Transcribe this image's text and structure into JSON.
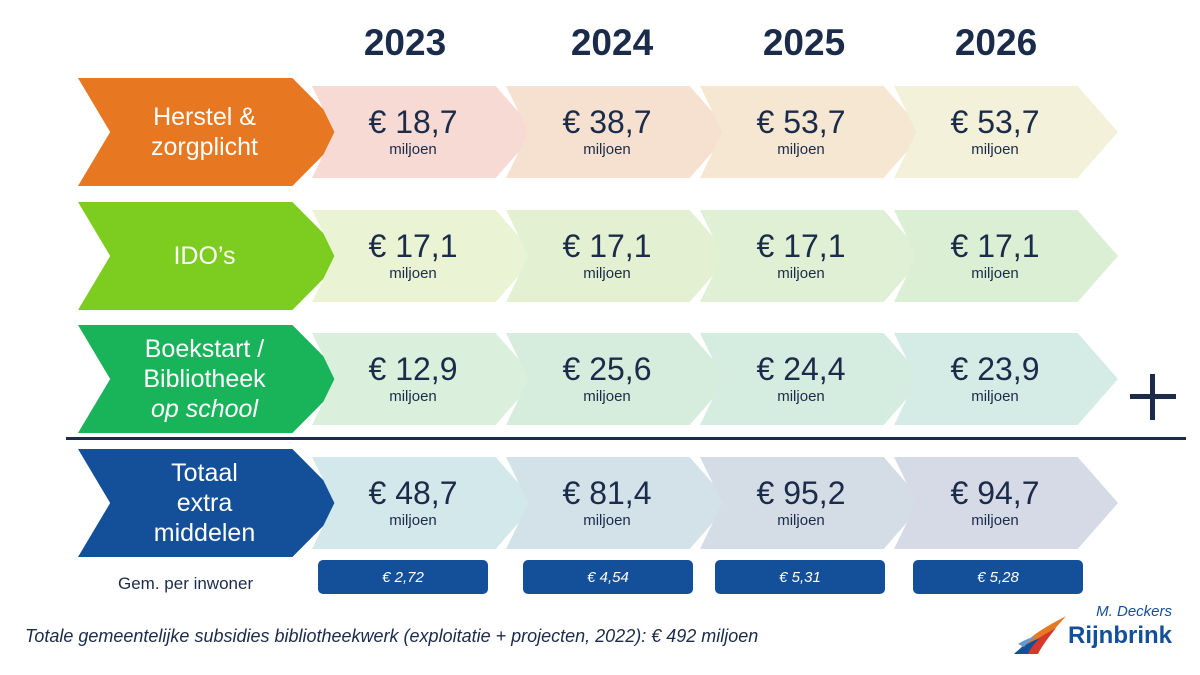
{
  "years": [
    "2023",
    "2024",
    "2025",
    "2026"
  ],
  "rows": [
    {
      "label_lines": [
        "Herstel &",
        "zorgplicht",
        ""
      ],
      "color": "#e87722",
      "fill": "#f6d9cc",
      "fills": [
        "#f7dad3",
        "#f6e0cf",
        "#f5e7d2",
        "#f3f1d9"
      ],
      "amounts": [
        "€ 18,7",
        "€ 38,7",
        "€ 53,7",
        "€ 53,7"
      ]
    },
    {
      "label_lines": [
        "IDO’s",
        "",
        ""
      ],
      "color": "#7ccd1f",
      "fills": [
        "#eaf3d3",
        "#e3f1d2",
        "#dff0d4",
        "#dbefd5"
      ],
      "amounts": [
        "€ 17,1",
        "€ 17,1",
        "€ 17,1",
        "€ 17,1"
      ]
    },
    {
      "label_lines": [
        "Boekstart /",
        "Bibliotheek",
        "op school"
      ],
      "color": "#19b45a",
      "fills": [
        "#daf0dc",
        "#d6ecdc",
        "#d5ece0",
        "#d5ece6"
      ],
      "amounts": [
        "€ 12,9",
        "€ 25,6",
        "€ 24,4",
        "€ 23,9"
      ]
    },
    {
      "label_lines": [
        "Totaal",
        "extra",
        "middelen"
      ],
      "color": "#14509a",
      "fills": [
        "#d3e8ea",
        "#d3e2e9",
        "#d4dce6",
        "#d6d9e6"
      ],
      "amounts": [
        "€ 48,7",
        "€ 81,4",
        "€ 95,2",
        "€ 94,7"
      ]
    }
  ],
  "unit": "miljoen",
  "per_inhabitant_label": "Gem. per inwoner",
  "per_inhabitant": [
    "€ 2,72",
    "€ 4,54",
    "€ 5,31",
    "€ 5,28"
  ],
  "footnote": "Totale gemeentelijke subsidies bibliotheekwerk (exploitatie + projecten, 2022): € 492 miljoen",
  "logo": {
    "author": "M. Deckers",
    "name": "Rijnbrink"
  },
  "icons": {
    "plus": "plus-icon",
    "logo": "rijnbrink-bird-icon"
  }
}
